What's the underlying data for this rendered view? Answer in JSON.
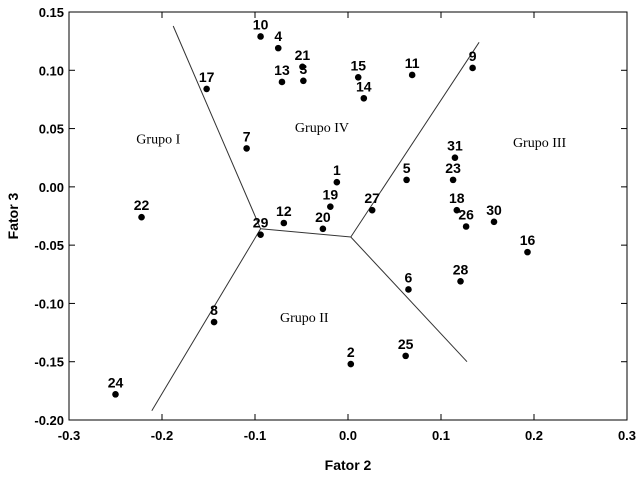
{
  "chart_data": {
    "type": "scatter",
    "xlabel": "Fator 2",
    "ylabel": "Fator 3",
    "xlim": [
      -0.3,
      0.3
    ],
    "ylim": [
      -0.2,
      0.15
    ],
    "x_ticks": [
      "-0.3",
      "-0.2",
      "-0.1",
      "0.0",
      "0.1",
      "0.2",
      "0.3"
    ],
    "y_ticks": [
      "0.15",
      "0.10",
      "0.05",
      "0.00",
      "-0.05",
      "-0.10",
      "-0.15",
      "-0.20"
    ],
    "grid": false,
    "points": [
      {
        "label": "1",
        "x": -0.012,
        "y": 0.004
      },
      {
        "label": "2",
        "x": 0.003,
        "y": -0.152
      },
      {
        "label": "3",
        "x": -0.048,
        "y": 0.091
      },
      {
        "label": "4",
        "x": -0.075,
        "y": 0.119
      },
      {
        "label": "5",
        "x": 0.063,
        "y": 0.006
      },
      {
        "label": "6",
        "x": 0.065,
        "y": -0.088
      },
      {
        "label": "7",
        "x": -0.109,
        "y": 0.033
      },
      {
        "label": "8",
        "x": -0.144,
        "y": -0.116
      },
      {
        "label": "9",
        "x": 0.134,
        "y": 0.102
      },
      {
        "label": "10",
        "x": -0.094,
        "y": 0.129
      },
      {
        "label": "11",
        "x": 0.069,
        "y": 0.096
      },
      {
        "label": "12",
        "x": -0.069,
        "y": -0.031
      },
      {
        "label": "13",
        "x": -0.071,
        "y": 0.09
      },
      {
        "label": "14",
        "x": 0.017,
        "y": 0.076
      },
      {
        "label": "15",
        "x": 0.011,
        "y": 0.094
      },
      {
        "label": "16",
        "x": 0.193,
        "y": -0.056
      },
      {
        "label": "17",
        "x": -0.152,
        "y": 0.084
      },
      {
        "label": "18",
        "x": 0.117,
        "y": -0.02
      },
      {
        "label": "19",
        "x": -0.019,
        "y": -0.017
      },
      {
        "label": "20",
        "x": -0.027,
        "y": -0.036
      },
      {
        "label": "21",
        "x": -0.049,
        "y": 0.103
      },
      {
        "label": "22",
        "x": -0.222,
        "y": -0.026
      },
      {
        "label": "23",
        "x": 0.113,
        "y": 0.006
      },
      {
        "label": "24",
        "x": -0.25,
        "y": -0.178
      },
      {
        "label": "25",
        "x": 0.062,
        "y": -0.145
      },
      {
        "label": "26",
        "x": 0.127,
        "y": -0.034
      },
      {
        "label": "27",
        "x": 0.026,
        "y": -0.02
      },
      {
        "label": "28",
        "x": 0.121,
        "y": -0.081
      },
      {
        "label": "29",
        "x": -0.094,
        "y": -0.041
      },
      {
        "label": "30",
        "x": 0.157,
        "y": -0.03
      },
      {
        "label": "31",
        "x": 0.115,
        "y": 0.025
      }
    ],
    "boundary_lines": [
      [
        [
          -0.188,
          0.138
        ],
        [
          -0.094,
          -0.036
        ],
        [
          -0.211,
          -0.192
        ]
      ],
      [
        [
          -0.094,
          -0.036
        ],
        [
          0.003,
          -0.043
        ],
        [
          0.141,
          0.124
        ]
      ],
      [
        [
          0.003,
          -0.043
        ],
        [
          0.128,
          -0.15
        ]
      ]
    ],
    "group_labels": [
      {
        "text": "Grupo I",
        "x": -0.204,
        "y": 0.037
      },
      {
        "text": "Grupo IV",
        "x": -0.028,
        "y": 0.047
      },
      {
        "text": "Grupo III",
        "x": 0.206,
        "y": 0.034
      },
      {
        "text": "Grupo II",
        "x": -0.047,
        "y": -0.116
      }
    ]
  }
}
